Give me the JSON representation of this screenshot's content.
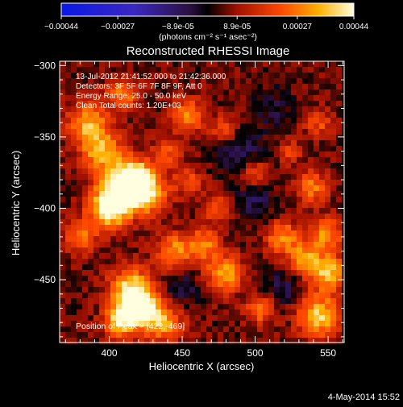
{
  "chart_data": {
    "type": "heatmap",
    "title": "Reconstructed RHESSI Image",
    "xlabel": "Heliocentric X (arcsec)",
    "ylabel": "Heliocentric Y (arcsec)",
    "xlim": [
      366,
      561
    ],
    "ylim": [
      -494,
      -297
    ],
    "xticks": [
      400,
      450,
      500,
      550
    ],
    "yticks": [
      -300,
      -350,
      -400,
      -450
    ],
    "colorbar": {
      "min": -0.00044,
      "max": 0.00044,
      "tick_labels": [
        "-0.00044",
        "-0.00027",
        "-8.9e-05",
        "8.9e-05",
        "0.00027",
        "0.00044"
      ],
      "unit_label": "(photons cm⁻² s⁻¹ asec⁻²)"
    },
    "info_lines": [
      "13-Jul-2012 21:41:52.000 to 21:42:36.000",
      "Detectors: 3F 5F 6F 7F 8F 9F, Att 0",
      "Energy Range: 25.0 - 50.0 keV",
      "Clean     Total counts: 1.20E+03"
    ],
    "peak_label": "Position of Peak = [422,-469]",
    "grid": false,
    "hotspots": [
      {
        "x": 422,
        "y": -469,
        "amp": 1.0,
        "r": 9
      },
      {
        "x": 415,
        "y": -455,
        "amp": 0.7,
        "r": 10
      },
      {
        "x": 408,
        "y": -478,
        "amp": 0.75,
        "r": 8
      },
      {
        "x": 438,
        "y": -480,
        "amp": 0.6,
        "r": 9
      },
      {
        "x": 545,
        "y": -475,
        "amp": 0.75,
        "r": 10
      },
      {
        "x": 552,
        "y": -445,
        "amp": 0.7,
        "r": 9
      },
      {
        "x": 550,
        "y": -418,
        "amp": 0.55,
        "r": 8
      },
      {
        "x": 480,
        "y": -445,
        "amp": 0.65,
        "r": 9
      },
      {
        "x": 505,
        "y": -470,
        "amp": 0.5,
        "r": 7
      },
      {
        "x": 385,
        "y": -340,
        "amp": 0.6,
        "r": 10
      },
      {
        "x": 395,
        "y": -360,
        "amp": 0.65,
        "r": 10
      },
      {
        "x": 410,
        "y": -385,
        "amp": 0.75,
        "r": 11
      },
      {
        "x": 428,
        "y": -390,
        "amp": 0.6,
        "r": 10
      },
      {
        "x": 400,
        "y": -400,
        "amp": 0.85,
        "r": 10
      },
      {
        "x": 418,
        "y": -378,
        "amp": 0.7,
        "r": 9
      },
      {
        "x": 445,
        "y": -430,
        "amp": 0.55,
        "r": 9
      },
      {
        "x": 465,
        "y": -425,
        "amp": 0.5,
        "r": 8
      },
      {
        "x": 520,
        "y": -420,
        "amp": 0.55,
        "r": 8
      },
      {
        "x": 535,
        "y": -435,
        "amp": 0.55,
        "r": 8
      },
      {
        "x": 410,
        "y": -320,
        "amp": 0.5,
        "r": 8
      },
      {
        "x": 455,
        "y": -335,
        "amp": 0.55,
        "r": 8
      },
      {
        "x": 480,
        "y": -345,
        "amp": 0.4,
        "r": 7
      },
      {
        "x": 500,
        "y": -375,
        "amp": 0.4,
        "r": 7
      },
      {
        "x": 540,
        "y": -385,
        "amp": 0.5,
        "r": 8
      },
      {
        "x": 545,
        "y": -340,
        "amp": 0.35,
        "r": 7
      },
      {
        "x": 475,
        "y": -400,
        "amp": 0.4,
        "r": 7
      },
      {
        "x": 380,
        "y": -420,
        "amp": 0.45,
        "r": 8
      },
      {
        "x": 455,
        "y": -380,
        "amp": 0.35,
        "r": 7
      },
      {
        "x": 525,
        "y": -360,
        "amp": 0.3,
        "r": 6
      },
      {
        "x": 440,
        "y": -360,
        "amp": 0.4,
        "r": 7
      }
    ],
    "coldspots": [
      {
        "x": 490,
        "y": -360,
        "amp": 0.3,
        "r": 12
      },
      {
        "x": 500,
        "y": -395,
        "amp": 0.25,
        "r": 10
      },
      {
        "x": 450,
        "y": -455,
        "amp": 0.25,
        "r": 9
      },
      {
        "x": 520,
        "y": -455,
        "amp": 0.25,
        "r": 9
      },
      {
        "x": 515,
        "y": -330,
        "amp": 0.2,
        "r": 10
      }
    ]
  },
  "footer": {
    "date": "4-May-2014 15:52"
  }
}
